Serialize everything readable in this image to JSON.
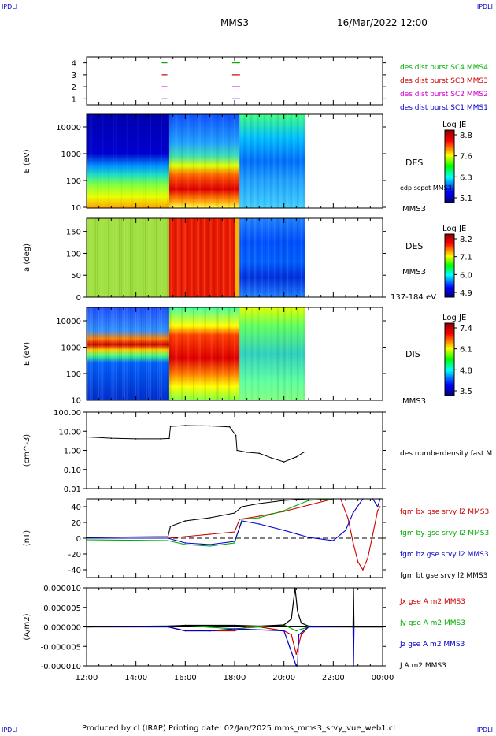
{
  "header": {
    "corner_tl": "IPDLI",
    "corner_tr": "IPDLI",
    "corner_bl": "IPDLI",
    "corner_br": "IPDLI",
    "spacecraft": "MMS3",
    "datetime": "16/Mar/2022 12:00"
  },
  "footer": {
    "text": "Produced by cl (IRAP)   Printing date: 02/Jan/2025   mms_mms3_srvy_vue_web1.cl"
  },
  "colors": {
    "mms1": "#0000cc",
    "mms2": "#cc00cc",
    "mms3": "#cc0000",
    "mms4": "#00aa00",
    "bx": "#cc0000",
    "by": "#00aa00",
    "bz": "#0000cc",
    "bt": "#000000"
  },
  "chart_data": [
    {
      "id": "burst",
      "type": "scatter",
      "ylim": [
        0.5,
        4.5
      ],
      "yticks": [
        "1",
        "2",
        "3",
        "4"
      ],
      "series": [
        {
          "name": "des dist burst SC1 MMS1",
          "level": 1,
          "color": "#0000cc",
          "x": [
            15.05,
            17.9
          ]
        },
        {
          "name": "des dist burst SC2 MMS2",
          "level": 2,
          "color": "#cc00cc",
          "x": [
            15.05,
            17.9
          ]
        },
        {
          "name": "des dist burst SC3 MMS3",
          "level": 3,
          "color": "#cc0000",
          "x": [
            15.05,
            17.9
          ]
        },
        {
          "name": "des dist burst SC4 MMS4",
          "level": 4,
          "color": "#00aa00",
          "x": [
            15.05,
            17.9
          ]
        }
      ]
    },
    {
      "id": "des_energy",
      "type": "heatmap",
      "ylabel": "E (eV)",
      "yscale": "log",
      "yticks": [
        "10000",
        "1000",
        "100",
        "10"
      ],
      "side_labels": [
        "DES",
        "edp scpot MMS3",
        "MMS3"
      ],
      "colorbar": {
        "title": "Log JE",
        "ticks": [
          "8.8",
          "7.6",
          "6.3",
          "5.1"
        ]
      }
    },
    {
      "id": "des_pitch",
      "type": "heatmap",
      "ylabel": "a (deg)",
      "ylim": [
        0,
        180
      ],
      "yticks": [
        "150",
        "100",
        "50",
        "0"
      ],
      "side_labels": [
        "DES",
        "MMS3",
        "137-184 eV"
      ],
      "colorbar": {
        "title": "Log JE",
        "ticks": [
          "8.2",
          "7.1",
          "6.0",
          "4.9"
        ]
      }
    },
    {
      "id": "dis_energy",
      "type": "heatmap",
      "ylabel": "E (eV)",
      "yscale": "log",
      "yticks": [
        "10000",
        "1000",
        "100",
        "10"
      ],
      "side_labels": [
        "DIS",
        "MMS3"
      ],
      "colorbar": {
        "title": "Log JE",
        "ticks": [
          "7.4",
          "6.1",
          "4.8",
          "3.5"
        ]
      }
    },
    {
      "id": "density",
      "type": "line",
      "ylabel": "(cm^-3)",
      "yscale": "log",
      "yticks": [
        "100.00",
        "10.00",
        "1.00",
        "0.10",
        "0.01"
      ],
      "series": [
        {
          "name": "des numberdensity fast M",
          "color": "#000000",
          "x": [
            12.0,
            13.0,
            14.0,
            15.0,
            15.35,
            15.4,
            16.0,
            17.0,
            17.8,
            18.05,
            18.1,
            18.5,
            19.0,
            19.5,
            20.0,
            20.5,
            20.8
          ],
          "y": [
            5.0,
            4.3,
            4.0,
            4.0,
            4.2,
            18,
            20,
            19,
            17,
            6,
            1.0,
            0.8,
            0.7,
            0.4,
            0.25,
            0.45,
            0.8
          ]
        }
      ]
    },
    {
      "id": "bfield",
      "type": "line",
      "ylabel": "(nT)",
      "ylim": [
        -50,
        50
      ],
      "yticks": [
        "40",
        "20",
        "0",
        "-20",
        "-40"
      ],
      "series": [
        {
          "name": "fgm bx gse srvy l2 MMS3",
          "color": "#cc0000",
          "x": [
            12.0,
            15.3,
            16.0,
            17.0,
            18.0,
            18.2,
            19.0,
            20.0,
            21.0,
            22.0,
            22.3,
            22.6,
            22.8,
            23.0,
            23.2,
            23.4,
            23.6,
            23.8,
            23.9
          ],
          "y": [
            0,
            0,
            2,
            5,
            8,
            24,
            28,
            34,
            42,
            55,
            58,
            25,
            -5,
            -30,
            -40,
            -25,
            5,
            35,
            40
          ]
        },
        {
          "name": "fgm by gse srvy l2 MMS3",
          "color": "#00aa00",
          "x": [
            12.0,
            15.3,
            16.0,
            17.0,
            18.0,
            18.3,
            19.0,
            20.0,
            21.0,
            22.0
          ],
          "y": [
            -2,
            -3,
            -8,
            -10,
            -6,
            24,
            26,
            35,
            48,
            58
          ]
        },
        {
          "name": "fgm bz gse srvy l2 MMS3",
          "color": "#0000cc",
          "x": [
            12.0,
            15.3,
            16.0,
            17.0,
            18.0,
            18.3,
            19.0,
            20.0,
            21.0,
            22.0,
            22.5,
            22.8,
            23.2,
            23.6,
            23.8,
            23.9
          ],
          "y": [
            0,
            0,
            -6,
            -8,
            -4,
            22,
            18,
            10,
            1,
            -3,
            10,
            32,
            55,
            70,
            40,
            58
          ]
        },
        {
          "name": "fgm bt gse srvy l2 MMS3",
          "color": "#000000",
          "x": [
            12.0,
            15.3,
            15.4,
            16.0,
            17.0,
            18.0,
            18.3,
            19.0,
            20.0,
            21.0
          ],
          "y": [
            1,
            2,
            15,
            22,
            26,
            32,
            40,
            44,
            48,
            54
          ]
        }
      ]
    },
    {
      "id": "current",
      "type": "line",
      "ylabel": "(A/m2)",
      "ylim": [
        -1e-05,
        1e-05
      ],
      "yticks": [
        "0.000010",
        "0.000005",
        "0.000000",
        "-0.000005",
        "-0.000010"
      ],
      "xticks": [
        "12:00",
        "14:00",
        "16:00",
        "18:00",
        "20:00",
        "22:00",
        "00:00"
      ],
      "xlim": [
        12,
        24
      ],
      "series": [
        {
          "name": "Jx gse A m2 MMS3",
          "color": "#cc0000",
          "x": [
            12,
            15.3,
            16,
            17,
            18,
            18.5,
            19,
            20,
            20.3,
            20.5,
            20.7,
            21,
            22,
            24
          ],
          "y": [
            0,
            0,
            -1e-06,
            -1e-06,
            -1e-06,
            0,
            0,
            -1e-06,
            -2e-06,
            -7e-06,
            -2e-06,
            0,
            0,
            0
          ]
        },
        {
          "name": "Jy gse A m2 MMS3",
          "color": "#00aa00",
          "x": [
            12,
            16,
            18,
            20,
            20.5,
            21,
            24
          ],
          "y": [
            0,
            3e-07,
            -5e-07,
            5e-07,
            -1e-06,
            0,
            0
          ]
        },
        {
          "name": "Jz gse A m2 MMS3",
          "color": "#0000cc",
          "x": [
            12,
            15.3,
            16,
            17,
            18,
            20,
            20.5,
            20.55,
            20.6,
            21,
            22.8,
            22.82,
            22.84,
            24
          ],
          "y": [
            0,
            0,
            -1e-06,
            -1e-06,
            -5e-07,
            -1e-06,
            -1e-05,
            -1e-05,
            -2e-06,
            0,
            0,
            -1e-05,
            0,
            0
          ]
        },
        {
          "name": "J A m2 MMS3",
          "color": "#000000",
          "x": [
            12,
            15.3,
            16,
            18,
            19,
            20,
            20.3,
            20.45,
            20.55,
            20.7,
            21,
            22.8,
            22.82,
            22.84,
            24
          ],
          "y": [
            0,
            2e-07,
            4e-07,
            4e-07,
            2e-07,
            5e-07,
            2e-06,
            1e-05,
            4e-06,
            1e-06,
            2e-07,
            0,
            1e-05,
            0,
            0
          ]
        }
      ]
    }
  ]
}
